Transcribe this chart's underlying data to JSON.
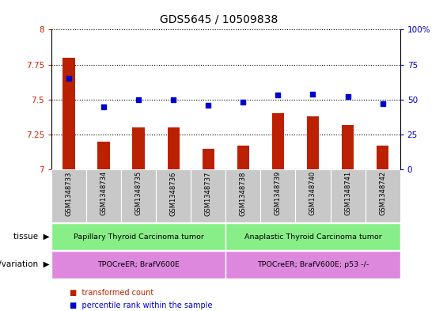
{
  "title": "GDS5645 / 10509838",
  "samples": [
    "GSM1348733",
    "GSM1348734",
    "GSM1348735",
    "GSM1348736",
    "GSM1348737",
    "GSM1348738",
    "GSM1348739",
    "GSM1348740",
    "GSM1348741",
    "GSM1348742"
  ],
  "transformed_count": [
    7.8,
    7.2,
    7.3,
    7.3,
    7.15,
    7.17,
    7.4,
    7.38,
    7.32,
    7.17
  ],
  "percentile_rank": [
    65,
    45,
    50,
    50,
    46,
    48,
    53,
    54,
    52,
    47
  ],
  "ylim_left": [
    7.0,
    8.0
  ],
  "ylim_right": [
    0,
    100
  ],
  "yticks_left": [
    7.0,
    7.25,
    7.5,
    7.75,
    8.0
  ],
  "ytick_labels_left": [
    "7",
    "7.25",
    "7.5",
    "7.75",
    "8"
  ],
  "yticks_right": [
    0,
    25,
    50,
    75,
    100
  ],
  "ytick_labels_right": [
    "0",
    "25",
    "50",
    "75",
    "100%"
  ],
  "bar_color": "#bb2000",
  "dot_color": "#0000cc",
  "bar_bottom": 7.0,
  "tissue_groups": [
    {
      "label": "Papillary Thyroid Carcinoma tumor",
      "start": 0,
      "end": 5,
      "color": "#88ee88"
    },
    {
      "label": "Anaplastic Thyroid Carcinoma tumor",
      "start": 5,
      "end": 10,
      "color": "#88ee88"
    }
  ],
  "genotype_groups": [
    {
      "label": "TPOCreER; BrafV600E",
      "start": 0,
      "end": 5,
      "color": "#dd88dd"
    },
    {
      "label": "TPOCreER; BrafV600E; p53 -/-",
      "start": 5,
      "end": 10,
      "color": "#dd88dd"
    }
  ],
  "tissue_label": "tissue",
  "genotype_label": "genotype/variation",
  "legend_items": [
    {
      "label": "transformed count",
      "color": "#bb2000"
    },
    {
      "label": "percentile rank within the sample",
      "color": "#0000cc"
    }
  ],
  "grid_color": "#000000",
  "sample_bg_color": "#c8c8c8",
  "title_fontsize": 10,
  "tick_fontsize": 7.5,
  "bar_width": 0.35
}
